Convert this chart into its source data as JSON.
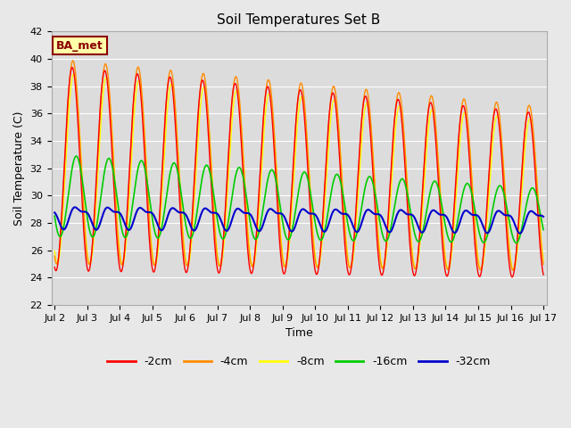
{
  "title": "Soil Temperatures Set B",
  "xlabel": "Time",
  "ylabel": "Soil Temperature (C)",
  "ylim": [
    22,
    42
  ],
  "x_tick_labels": [
    "Jul 2",
    "Jul 3",
    "Jul 4",
    "Jul 5",
    "Jul 6",
    "Jul 7",
    "Jul 8",
    "Jul 9",
    "Jul 10",
    "Jul 11",
    "Jul 12",
    "Jul 13",
    "Jul 14",
    "Jul 15",
    "Jul 16",
    "Jul 17"
  ],
  "annotation_text": "BA_met",
  "annotation_box_facecolor": "#FFFFAA",
  "annotation_box_edgecolor": "#8B0000",
  "annotation_text_color": "#8B0000",
  "series": {
    "-2cm": {
      "color": "#FF0000",
      "lw": 1.0
    },
    "-4cm": {
      "color": "#FF8C00",
      "lw": 1.0
    },
    "-8cm": {
      "color": "#FFFF00",
      "lw": 1.0
    },
    "-16cm": {
      "color": "#00CC00",
      "lw": 1.2
    },
    "-32cm": {
      "color": "#0000CC",
      "lw": 1.5
    }
  },
  "legend_order": [
    "-2cm",
    "-4cm",
    "-8cm",
    "-16cm",
    "-32cm"
  ],
  "fig_facecolor": "#E8E8E8",
  "plot_bg_color": "#DCDCDC",
  "grid_color": "#FFFFFF",
  "title_fontsize": 11,
  "tick_fontsize": 8,
  "ylabel_fontsize": 9,
  "xlabel_fontsize": 9
}
